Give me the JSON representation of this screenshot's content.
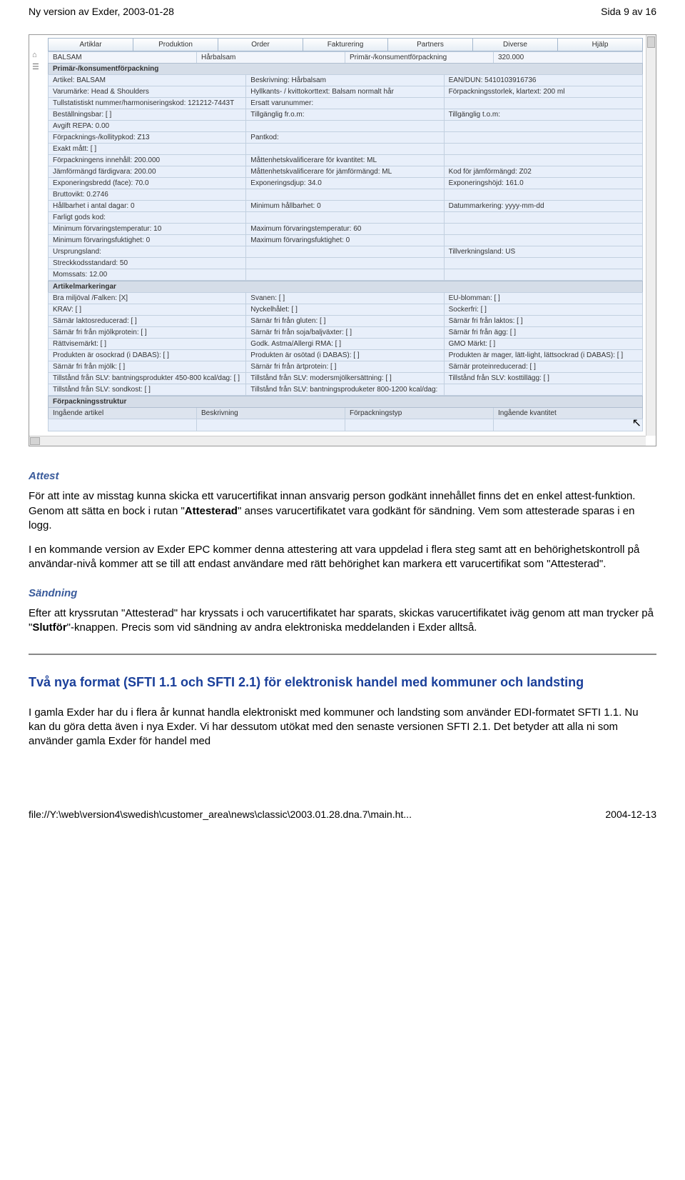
{
  "header": {
    "left": "Ny version av Exder, 2003-01-28",
    "right": "Sida 9 av 16"
  },
  "tabs": [
    "Artiklar",
    "Produktion",
    "Order",
    "Fakturering",
    "Partners",
    "Diverse",
    "Hjälp"
  ],
  "topline": {
    "c1": "BALSAM",
    "c2": "Hårbalsam",
    "c3": "Primär-/konsumentförpackning",
    "c4": "320.000"
  },
  "section1_title": "Primär-/konsumentförpackning",
  "rows1": [
    [
      "Artikel: BALSAM",
      "Beskrivning: Hårbalsam",
      "EAN/DUN: 5410103916736"
    ],
    [
      "Varumärke: Head & Shoulders",
      "Hyllkants- / kvittokorttext: Balsam normalt hår",
      "Förpackningsstorlek, klartext: 200 ml"
    ],
    [
      "Tullstatistiskt nummer/harmoniseringskod: 121212-7443T",
      "Ersatt varunummer:",
      ""
    ],
    [
      "Beställningsbar: [ ]",
      "Tillgänglig fr.o.m:",
      "Tillgänglig t.o.m:"
    ],
    [
      "Avgift REPA: 0.00",
      "",
      ""
    ],
    [
      "Förpacknings-/kollitypkod: Z13",
      "Pantkod:",
      ""
    ],
    [
      "Exakt mått: [ ]",
      "",
      ""
    ],
    [
      "Förpackningens innehåll: 200.000",
      "Måttenhetskvalificerare för kvantitet: ML",
      ""
    ],
    [
      "Jämförmängd färdigvara: 200.00",
      "Måttenhetskvalificerare för jämförmängd: ML",
      "Kod för jämförmängd: Z02"
    ],
    [
      "Exponeringsbredd (face): 70.0",
      "Exponeringsdjup: 34.0",
      "Exponeringshöjd: 161.0"
    ],
    [
      "Bruttovikt: 0.2746",
      "",
      ""
    ],
    [
      "Hållbarhet i antal dagar: 0",
      "Minimum hållbarhet: 0",
      "Datummarkering: yyyy-mm-dd"
    ],
    [
      "Farligt gods kod:",
      "",
      ""
    ],
    [
      "Minimum förvaringstemperatur: 10",
      "Maximum förvaringstemperatur: 60",
      ""
    ],
    [
      "Minimum förvaringsfuktighet: 0",
      "Maximum förvaringsfuktighet: 0",
      ""
    ],
    [
      "Ursprungsland:",
      "",
      "Tillverkningsland: US"
    ],
    [
      "Streckkodsstandard: 50",
      "",
      ""
    ],
    [
      "Momssats: 12.00",
      "",
      ""
    ]
  ],
  "section2_title": "Artikelmarkeringar",
  "rows2": [
    [
      "Bra miljöval /Falken: [X]",
      "Svanen: [ ]",
      "EU-blomman: [ ]"
    ],
    [
      "KRAV: [ ]",
      "Nyckelhålet: [ ]",
      "Sockerfri: [ ]"
    ],
    [
      "Särnär laktosreducerad: [ ]",
      "Särnär fri från gluten: [ ]",
      "Särnär fri från laktos: [ ]"
    ],
    [
      "Särnär fri från mjölkprotein: [ ]",
      "Särnär fri från soja/baljväxter: [ ]",
      "Särnär fri från ägg: [ ]"
    ],
    [
      "Rättvisemärkt: [ ]",
      "Godk. Astma/Allergi RMA: [ ]",
      "GMO Märkt: [ ]"
    ],
    [
      "Produkten är osockrad (i DABAS): [ ]",
      "Produkten är osötad (i DABAS): [ ]",
      "Produkten är mager, lätt-light, lättsockrad (i DABAS): [ ]"
    ],
    [
      "Särnär fri från mjölk: [ ]",
      "Särnär fri från ärtprotein: [ ]",
      "Särnär proteinreducerad: [ ]"
    ],
    [
      "Tillstånd från SLV: bantningsprodukter 450-800 kcal/dag: [ ]",
      "Tillstånd från SLV: modersmjölkersättning: [ ]",
      "Tillstånd från SLV: kosttillägg: [ ]"
    ],
    [
      "Tillstånd från SLV: sondkost: [ ]",
      "Tillstånd från SLV: bantningsproduketer 800-1200 kcal/dag:",
      ""
    ]
  ],
  "section3_title": "Förpackningsstruktur",
  "cols3": [
    "Ingående artikel",
    "Beskrivning",
    "Förpackningstyp",
    "Ingående kvantitet"
  ],
  "doc": {
    "attest_h": "Attest",
    "attest_p1a": "För att inte av misstag kunna skicka ett varucertifikat innan ansvarig person godkänt innehållet finns det en enkel attest-funktion. Genom att sätta en bock i rutan \"",
    "attest_b1": "Attesterad",
    "attest_p1b": "\" anses varucertifikatet vara godkänt för sändning. Vem som attesterade sparas i en logg.",
    "attest_p2": "I en kommande version av Exder EPC kommer denna attestering att vara uppdelad i flera steg samt att en behörighetskontroll på användar-nivå kommer att se till att endast användare med rätt behörighet kan markera ett varucertifikat som \"Attesterad\".",
    "sandning_h": "Sändning",
    "sandning_p_a": "Efter att kryssrutan \"Attesterad\" har kryssats i och varucertifikatet har sparats, skickas varucertifikatet iväg genom att man trycker på \"",
    "sandning_b": "Slutför",
    "sandning_p_b": "\"-knappen. Precis som vid sändning av andra elektroniska meddelanden i Exder alltså.",
    "h2": "Två nya format (SFTI 1.1 och SFTI 2.1) för elektronisk handel med kommuner och landsting",
    "p_last": "I gamla Exder har du i flera år kunnat handla elektroniskt med kommuner och landsting som använder EDI-formatet SFTI 1.1. Nu kan du göra detta även i nya Exder. Vi har dessutom utökat med den senaste versionen SFTI 2.1. Det betyder att alla ni som använder gamla Exder för handel med"
  },
  "footer": {
    "left": "file://Y:\\web\\version4\\swedish\\customer_area\\news\\classic\\2003.01.28.dna.7\\main.ht...",
    "right": "2004-12-13"
  }
}
